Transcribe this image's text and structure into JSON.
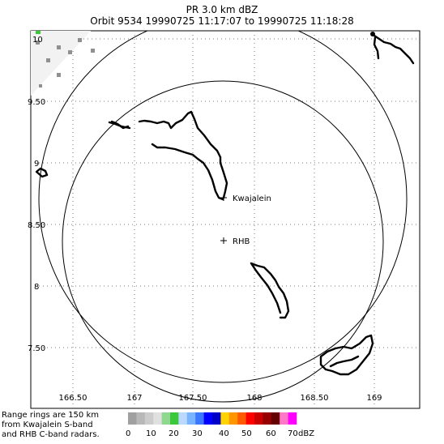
{
  "title_line1": "PR  3.0 km dBZ",
  "title_line2": "Orbit 9534 19990725 11:17:07 to 19990725 11:18:28",
  "x_ticks": [
    "166.50",
    "167",
    "167.50",
    "168",
    "168.50",
    "169"
  ],
  "y_ticks": [
    "10",
    "9.50",
    "9",
    "8.50",
    "8",
    "7.50"
  ],
  "places": [
    {
      "name": "Kwajalein",
      "label": "Kwajalein"
    },
    {
      "name": "RHB",
      "label": "RHB"
    }
  ],
  "note_lines": [
    "Range rings are 150 km",
    "from Kwajalein S-band",
    "and RHB C-band radars."
  ],
  "colorbar": {
    "labels": [
      "0",
      "10",
      "20",
      "30",
      "40",
      "50",
      "60",
      "70"
    ],
    "unit": "dBZ",
    "colors": [
      "#a0a0a0",
      "#b8b8b8",
      "#cccccc",
      "#e0e0e0",
      "#90d890",
      "#3cc83c",
      "#bcd8ff",
      "#78b4ff",
      "#3c78ff",
      "#0000ff",
      "#0000c8",
      "#ffd200",
      "#ff9600",
      "#ff5a00",
      "#ff0000",
      "#c80000",
      "#960000",
      "#640000",
      "#ff78c8",
      "#ff00ff"
    ]
  }
}
